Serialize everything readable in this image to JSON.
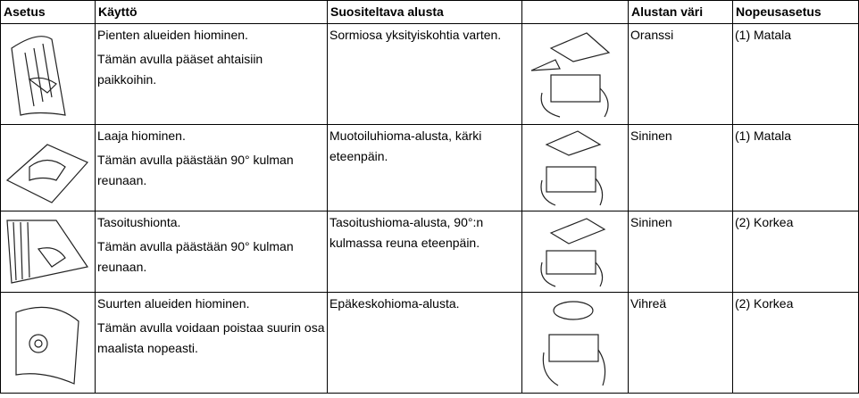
{
  "table": {
    "header": [
      "Asetus",
      "Käyttö",
      "Suositeltava alusta",
      "Alustan väri",
      "Nopeusasetus"
    ],
    "rows": [
      {
        "usage": [
          "Pienten alueiden hiominen.",
          "Tämän avulla pääset ahtaisiin paikkoihin."
        ],
        "pad": "Sormiosa yksityiskohtia varten.",
        "color": "Oranssi",
        "speed": "(1) Matala"
      },
      {
        "usage": [
          "Laaja hiominen.",
          "Tämän avulla päästään 90° kulman reunaan."
        ],
        "pad": "Muotoiluhioma-alusta, kärki eteenpäin.",
        "color": "Sininen",
        "speed": "(1) Matala"
      },
      {
        "usage": [
          "Tasoitushionta.",
          "Tämän avulla päästään 90° kulman reunaan."
        ],
        "pad": "Tasoitushioma-alusta, 90°:n kulmassa reuna eteenpäin.",
        "color": "Sininen",
        "speed": "(2) Korkea"
      },
      {
        "usage": [
          "Suurten alueiden hiominen.",
          "Tämän avulla voidaan poistaa suurin osa maalista nopeasti."
        ],
        "pad": "Epäkeskohioma-alusta.",
        "color": "Vihreä",
        "speed": "(2) Korkea"
      }
    ]
  }
}
